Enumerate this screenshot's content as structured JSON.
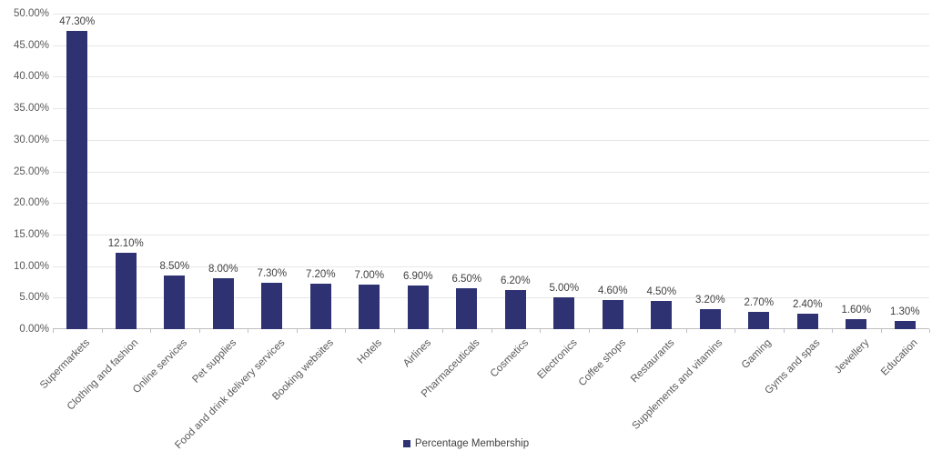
{
  "chart_data": {
    "type": "bar",
    "title": "",
    "legend": "Percentage Membership",
    "legend_position": "bottom-center",
    "categories": [
      "Supermarkets",
      "Clothing and fashion",
      "Online services",
      "Pet supplies",
      "Food and drink delivery services",
      "Booking websites",
      "Hotels",
      "Airlines",
      "Pharmaceuticals",
      "Cosmetics",
      "Electronics",
      "Coffee shops",
      "Restaurants",
      "Supplements and vitamins",
      "Gaming",
      "Gyms and spas",
      "Jewellery",
      "Education"
    ],
    "values": [
      47.3,
      12.1,
      8.5,
      8.0,
      7.3,
      7.2,
      7.0,
      6.9,
      6.5,
      6.2,
      5.0,
      4.6,
      4.5,
      3.2,
      2.7,
      2.4,
      1.6,
      1.3
    ],
    "value_labels": [
      "47.30%",
      "12.10%",
      "8.50%",
      "8.00%",
      "7.30%",
      "7.20%",
      "7.00%",
      "6.90%",
      "6.50%",
      "6.20%",
      "5.00%",
      "4.60%",
      "4.50%",
      "3.20%",
      "2.70%",
      "2.40%",
      "1.60%",
      "1.30%"
    ],
    "xlabel": "",
    "ylabel": "",
    "ylim": [
      0,
      50
    ],
    "y_ticks": [
      "0.00%",
      "5.00%",
      "10.00%",
      "15.00%",
      "20.00%",
      "25.00%",
      "30.00%",
      "35.00%",
      "40.00%",
      "45.00%",
      "50.00%"
    ],
    "grid": true,
    "colors": {
      "bar": "#2e3272",
      "gridline": "#e7e7e7",
      "axis_line": "#bfbfbf",
      "axis_label": "#595959",
      "data_label": "#404040"
    }
  }
}
